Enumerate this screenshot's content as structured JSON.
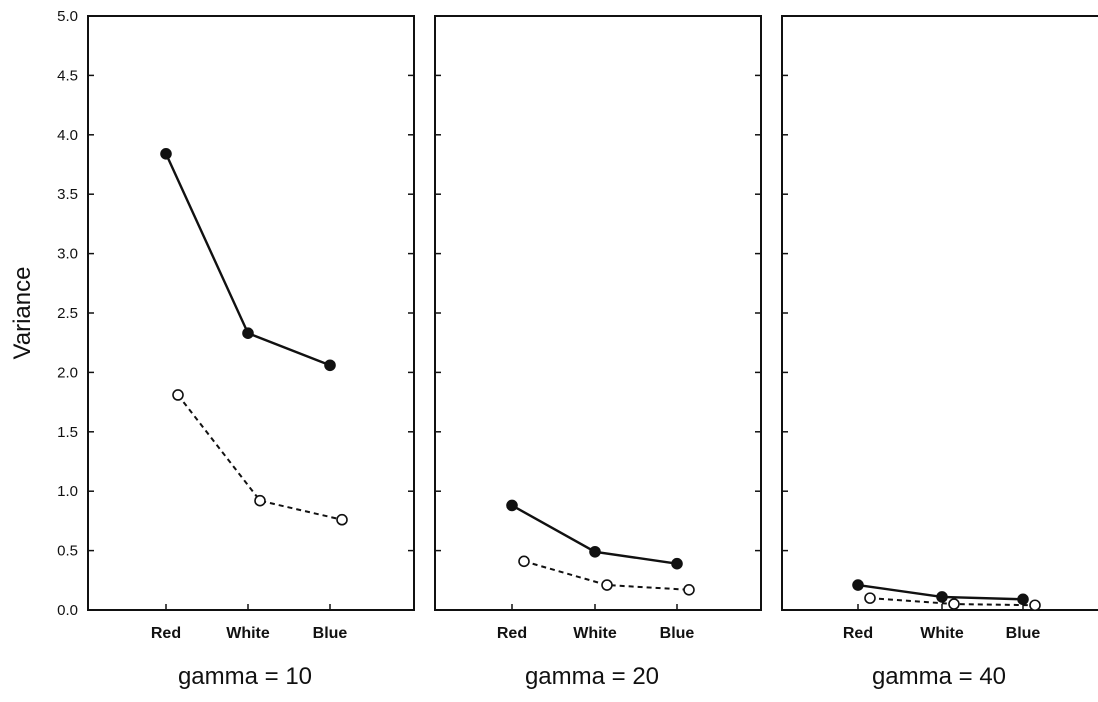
{
  "chart_data": {
    "type": "line",
    "ylabel": "Variance",
    "ylim": [
      0,
      5
    ],
    "yticks": [
      "0.0",
      "0.5",
      "1.0",
      "1.5",
      "2.0",
      "2.5",
      "3.0",
      "3.5",
      "4.0",
      "4.5",
      "5.0"
    ],
    "categories": [
      "Red",
      "White",
      "Blue"
    ],
    "grid": false,
    "panels": [
      {
        "title": "gamma = 10",
        "series": [
          {
            "style": "solid-filled",
            "values": [
              3.84,
              2.33,
              2.06
            ]
          },
          {
            "style": "dashed-open",
            "values": [
              1.81,
              0.92,
              0.76
            ]
          }
        ]
      },
      {
        "title": "gamma = 20",
        "series": [
          {
            "style": "solid-filled",
            "values": [
              0.88,
              0.49,
              0.39
            ]
          },
          {
            "style": "dashed-open",
            "values": [
              0.41,
              0.21,
              0.17
            ]
          }
        ]
      },
      {
        "title": "gamma = 40",
        "series": [
          {
            "style": "solid-filled",
            "values": [
              0.21,
              0.11,
              0.09
            ]
          },
          {
            "style": "dashed-open",
            "values": [
              0.1,
              0.05,
              0.04
            ]
          }
        ]
      }
    ]
  }
}
